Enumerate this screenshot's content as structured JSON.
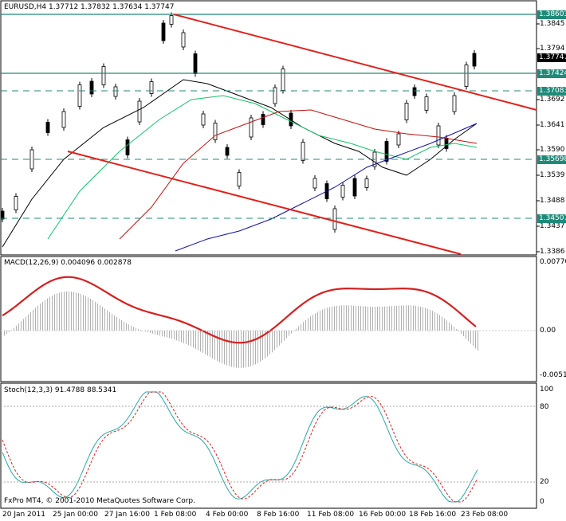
{
  "main": {
    "header": "EURUSD,H4  1.37712 1.37832 1.37634 1.37747",
    "y_axis_labels": [
      "1.3845",
      "1.3794",
      "1.3692",
      "1.3641",
      "1.3590",
      "1.3539",
      "1.3488",
      "1.3437",
      "1.3386"
    ],
    "level_labels": [
      "1.38603",
      "1.37424",
      "1.37083",
      "1.35698",
      "1.34507"
    ],
    "current_price": "1.37747"
  },
  "macd": {
    "header": "MACD(12,26,9) 0.004096 0.002878",
    "y_axis_labels": [
      "0.00770",
      "0.00",
      "-0.00510"
    ]
  },
  "stoch": {
    "header": "Stoch(12,3,3) 91.4788 88.5341",
    "y_axis_labels": [
      "100",
      "80",
      "20",
      "0"
    ]
  },
  "footer": {
    "copyright": "FxPro MT4, © 2001-2010 MetaQuotes Software Corp."
  },
  "time_axis": [
    "20 Jan 2011",
    "25 Jan 00:00",
    "27 Jan 16:00",
    "1 Feb 08:00",
    "4 Feb 00:00",
    "8 Feb 16:00",
    "11 Feb 08:00",
    "16 Feb 00:00",
    "18 Feb 16:00",
    "23 Feb 08:00"
  ],
  "colors": {
    "level_line": "#1f8a7a",
    "trend_line": "#e0201c",
    "current_box": "#000000",
    "level_box": "#1f8a7a",
    "macd_signal": "#d42020"
  }
}
